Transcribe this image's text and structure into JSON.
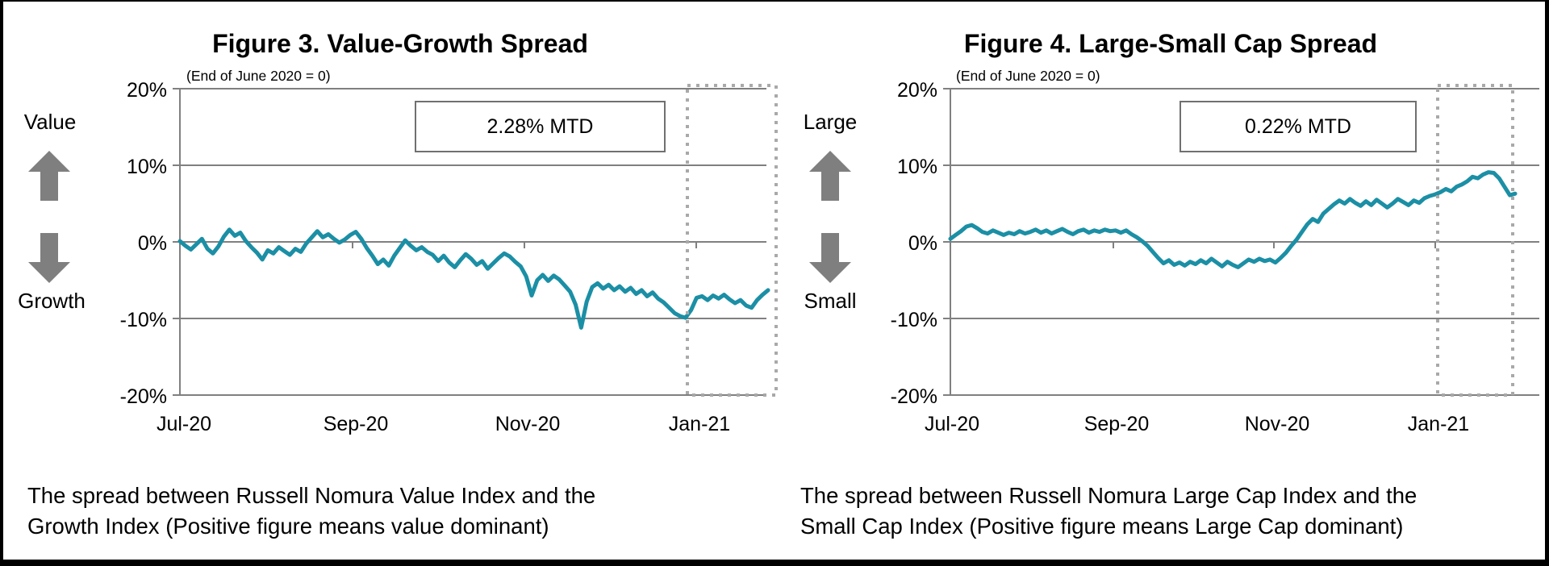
{
  "colors": {
    "line": "#1b8fa5",
    "grid": "#808080",
    "dotted_box": "#a9a9a9",
    "arrow": "#7f7f7f",
    "mtd_border": "#707070",
    "text": "#000000",
    "background": "#ffffff",
    "frame": "#000000"
  },
  "chart_data": [
    {
      "type": "line",
      "title": "Figure 3. Value-Growth Spread",
      "subtitle": "(End of June 2020 = 0)",
      "mtd_label": "2.28% MTD",
      "direction_up_label": "Value",
      "direction_down_label": "Growth",
      "caption_line1": "The spread between Russell Nomura Value Index and the",
      "caption_line2": "Growth Index (Positive figure means value dominant)",
      "ylabel": "%",
      "ylim": [
        -20,
        20
      ],
      "yticks": [
        20,
        10,
        0,
        -10,
        -20
      ],
      "ytick_labels": [
        "20%",
        "10%",
        "0%",
        "-10%",
        "-20%"
      ],
      "xtick_labels": [
        "Jul-20",
        "Sep-20",
        "Nov-20",
        "Jan-21"
      ],
      "x_description": "Daily, approx. 2-day steps, Jul 2020 to early Feb 2021",
      "highlight_x_region": "Jan-21",
      "grid": true,
      "legend": "none",
      "series": [
        {
          "name": "Value-Growth spread",
          "values": [
            0.1,
            -0.5,
            -1.0,
            -0.3,
            0.4,
            -0.9,
            -1.5,
            -0.6,
            0.7,
            1.6,
            0.8,
            1.2,
            0.1,
            -0.7,
            -1.4,
            -2.3,
            -1.1,
            -1.5,
            -0.7,
            -1.2,
            -1.7,
            -0.9,
            -1.3,
            -0.2,
            0.6,
            1.4,
            0.6,
            1.0,
            0.4,
            -0.1,
            0.3,
            0.9,
            1.3,
            0.4,
            -0.8,
            -1.8,
            -2.9,
            -2.3,
            -3.1,
            -1.8,
            -0.8,
            0.2,
            -0.5,
            -1.1,
            -0.7,
            -1.3,
            -1.7,
            -2.5,
            -1.8,
            -2.7,
            -3.3,
            -2.4,
            -1.6,
            -2.2,
            -3.0,
            -2.5,
            -3.5,
            -2.8,
            -2.1,
            -1.5,
            -1.9,
            -2.6,
            -3.2,
            -4.5,
            -7.0,
            -5.0,
            -4.3,
            -5.1,
            -4.4,
            -4.9,
            -5.7,
            -6.5,
            -8.2,
            -11.2,
            -7.8,
            -5.9,
            -5.4,
            -6.1,
            -5.6,
            -6.3,
            -5.8,
            -6.5,
            -6.0,
            -6.8,
            -6.3,
            -7.1,
            -6.6,
            -7.4,
            -7.9,
            -8.6,
            -9.3,
            -9.7,
            -9.9,
            -8.9,
            -7.3,
            -7.1,
            -7.6,
            -7.0,
            -7.4,
            -6.9,
            -7.5,
            -8.0,
            -7.6,
            -8.3,
            -8.6,
            -7.6,
            -6.9,
            -6.3
          ]
        }
      ]
    },
    {
      "type": "line",
      "title": "Figure 4. Large-Small Cap Spread",
      "subtitle": "(End of June 2020 = 0)",
      "mtd_label": "0.22% MTD",
      "direction_up_label": "Large",
      "direction_down_label": "Small",
      "caption_line1": "The spread between Russell Nomura Large Cap Index and the",
      "caption_line2": "Small Cap Index (Positive figure means Large Cap dominant)",
      "ylabel": "%",
      "ylim": [
        -20,
        20
      ],
      "yticks": [
        20,
        10,
        0,
        -10,
        -20
      ],
      "ytick_labels": [
        "20%",
        "10%",
        "0%",
        "-10%",
        "-20%"
      ],
      "xtick_labels": [
        "Jul-20",
        "Sep-20",
        "Nov-20",
        "Jan-21"
      ],
      "x_description": "Daily, approx. 2-day steps, Jul 2020 to early Feb 2021",
      "highlight_x_region": "Jan-21",
      "grid": true,
      "legend": "none",
      "series": [
        {
          "name": "Large-Small Cap spread",
          "values": [
            0.4,
            0.9,
            1.4,
            2.0,
            2.2,
            1.8,
            1.3,
            1.1,
            1.5,
            1.2,
            0.9,
            1.2,
            1.0,
            1.4,
            1.1,
            1.3,
            1.6,
            1.2,
            1.5,
            1.1,
            1.4,
            1.7,
            1.3,
            1.0,
            1.4,
            1.6,
            1.2,
            1.5,
            1.3,
            1.6,
            1.4,
            1.5,
            1.2,
            1.5,
            1.0,
            0.6,
            0.1,
            -0.5,
            -1.3,
            -2.1,
            -2.8,
            -2.4,
            -3.0,
            -2.7,
            -3.1,
            -2.6,
            -2.9,
            -2.4,
            -2.8,
            -2.2,
            -2.7,
            -3.2,
            -2.6,
            -3.0,
            -3.3,
            -2.8,
            -2.3,
            -2.6,
            -2.2,
            -2.5,
            -2.3,
            -2.7,
            -2.1,
            -1.4,
            -0.5,
            0.3,
            1.3,
            2.3,
            3.0,
            2.6,
            3.7,
            4.3,
            4.9,
            5.4,
            5.0,
            5.6,
            5.1,
            4.7,
            5.3,
            4.8,
            5.5,
            5.0,
            4.5,
            5.0,
            5.6,
            5.2,
            4.8,
            5.4,
            5.1,
            5.7,
            6.0,
            6.2,
            6.5,
            6.9,
            6.6,
            7.2,
            7.5,
            7.9,
            8.5,
            8.3,
            8.8,
            9.1,
            9.0,
            8.3,
            7.2,
            6.1,
            6.3
          ]
        }
      ]
    }
  ]
}
